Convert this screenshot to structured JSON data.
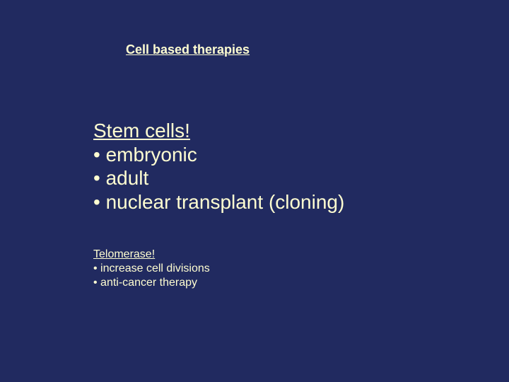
{
  "colors": {
    "background": "#212a60",
    "text": "#fefdd1"
  },
  "typography": {
    "family": "Arial",
    "title_fontsize": 18,
    "main_fontsize": 28,
    "sub_fontsize": 16
  },
  "title": "Cell based therapies",
  "main": {
    "heading": "Stem cells!",
    "bullets": [
      "• embryonic",
      "• adult",
      "• nuclear transplant (cloning)"
    ]
  },
  "sub": {
    "heading": "Telomerase!",
    "bullets": [
      "• increase cell divisions",
      "• anti-cancer therapy"
    ]
  }
}
